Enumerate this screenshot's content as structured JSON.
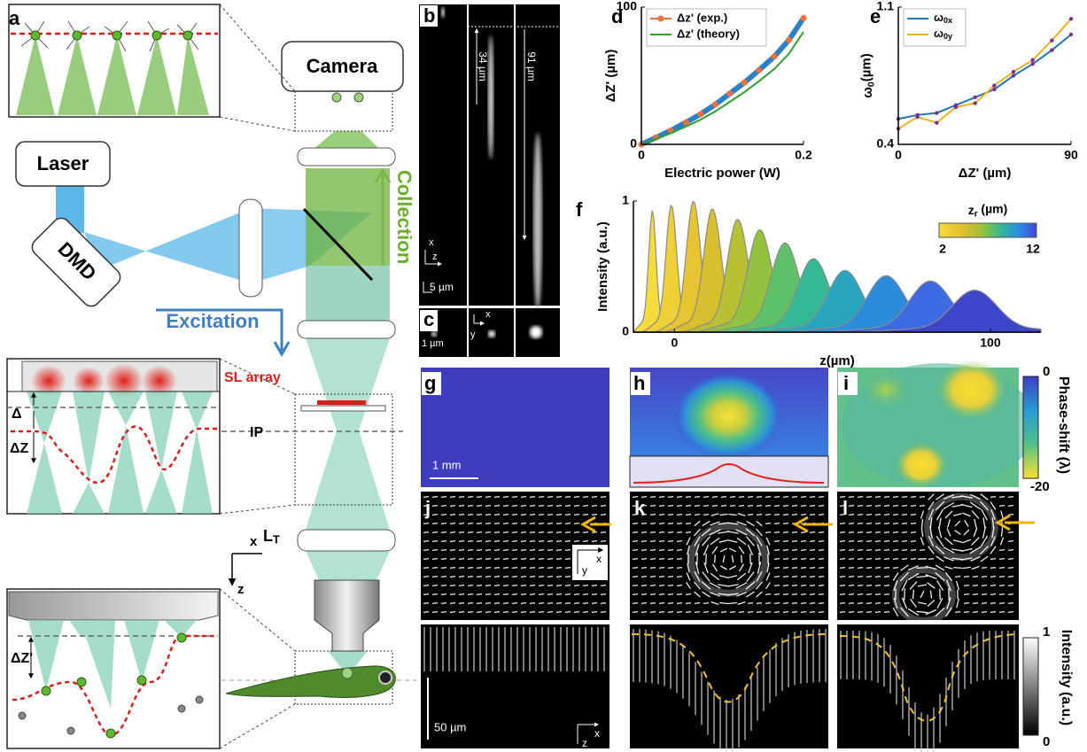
{
  "figure": {
    "panel_labels": [
      "a",
      "b",
      "c",
      "d",
      "e",
      "f",
      "g",
      "h",
      "i",
      "j",
      "k",
      "l"
    ],
    "a": {
      "camera": "Camera",
      "laser": "Laser",
      "dmd": "DMD",
      "collection": "Collection",
      "excitation": "Excitation",
      "sl_array": "SL array",
      "ip": "IP",
      "delta": "Δ",
      "delta_z": "ΔZ",
      "tube_lens": "LT",
      "delta_z_prime": "ΔZ'",
      "axis_x": "x",
      "axis_z": "z"
    },
    "b": {
      "length_1": "34 µm",
      "length_2": "91 µm",
      "axis_x": "x",
      "axis_z": "z",
      "scale": "5 µm"
    },
    "c": {
      "scale": "1 µm",
      "axis_x": "x",
      "axis_y": "y"
    },
    "g": {
      "scale": "1 mm"
    },
    "j": {
      "axis_x": "x",
      "axis_y": "y",
      "scale": "50 µm",
      "axis_x2": "x",
      "axis_z": "z"
    },
    "phase_colorbar": {
      "label": "Phase-shift (λ)",
      "lim": [
        0,
        -20
      ]
    },
    "intensity_colorbar": {
      "label": "Intensity (a.u.)",
      "lim": [
        1,
        0
      ]
    }
  },
  "chart_data": [
    {
      "type": "line",
      "xlabel": "Electric power (W)",
      "ylabel": "ΔZ' (µm)",
      "x": [
        0,
        0.018,
        0.036,
        0.055,
        0.073,
        0.091,
        0.109,
        0.127,
        0.145,
        0.164,
        0.182,
        0.2
      ],
      "series": [
        {
          "name": "Δz' (exp.)",
          "color": "#e8743b",
          "line_color": "#2f7fc8",
          "values": [
            0,
            5,
            10,
            16,
            22,
            29,
            37,
            45,
            54,
            64,
            76,
            92
          ]
        },
        {
          "name": "Δz' (theory)",
          "color": "#2ca02c",
          "values": [
            0,
            4,
            8,
            13,
            18,
            24,
            31,
            38,
            46,
            55,
            66,
            82
          ]
        }
      ],
      "xlim": [
        0,
        0.2
      ],
      "ylim": [
        0,
        100
      ],
      "xticks": [
        0,
        0.2
      ],
      "yticks": [
        0,
        100
      ],
      "legend": "upper left"
    },
    {
      "type": "line",
      "xlabel": "ΔZ' (µm)",
      "ylabel": "ω0(µm)",
      "x": [
        0,
        10,
        20,
        30,
        40,
        50,
        60,
        70,
        80,
        90
      ],
      "series": [
        {
          "name": "ω0x",
          "color": "#1f77b4",
          "marker_color": "#7e2f8e",
          "values": [
            0.53,
            0.55,
            0.56,
            0.6,
            0.64,
            0.68,
            0.75,
            0.81,
            0.88,
            0.96
          ]
        },
        {
          "name": "ω0y",
          "color": "#edb120",
          "marker_color": "#7e2f8e",
          "values": [
            0.48,
            0.54,
            0.51,
            0.59,
            0.61,
            0.7,
            0.77,
            0.83,
            0.93,
            1.04
          ]
        }
      ],
      "xlim": [
        0,
        90
      ],
      "ylim": [
        0.4,
        1.1
      ],
      "xticks": [
        0,
        90
      ],
      "yticks": [
        0.4,
        1.1
      ],
      "legend": "upper left"
    },
    {
      "type": "ridge",
      "xlabel": "z(µm)",
      "ylabel": "Intensity (a.u.)",
      "centers": [
        -7,
        -1,
        6,
        12,
        20,
        27,
        35,
        44,
        54,
        67,
        81,
        95
      ],
      "peaks": [
        0.93,
        0.97,
        1.0,
        0.94,
        0.86,
        0.78,
        0.68,
        0.56,
        0.47,
        0.43,
        0.39,
        0.32
      ],
      "widths": [
        2,
        2.9,
        3.8,
        4.7,
        5.6,
        6.5,
        7.5,
        8.4,
        9.3,
        10.2,
        11.1,
        12
      ],
      "colors": [
        "#f4dc3a",
        "#efcf36",
        "#e7c531",
        "#d8bf2e",
        "#b8c034",
        "#93c23e",
        "#5fc06a",
        "#35b896",
        "#2aa5c0",
        "#2c8cdc",
        "#3c6ae0",
        "#3d45c9"
      ],
      "colorbar": {
        "label": "zr (µm)",
        "lim": [
          2,
          12
        ]
      },
      "xlim": [
        -13,
        116
      ],
      "ylim": [
        0,
        1
      ],
      "xticks": [
        0,
        100
      ],
      "yticks": [
        0,
        1
      ]
    }
  ]
}
